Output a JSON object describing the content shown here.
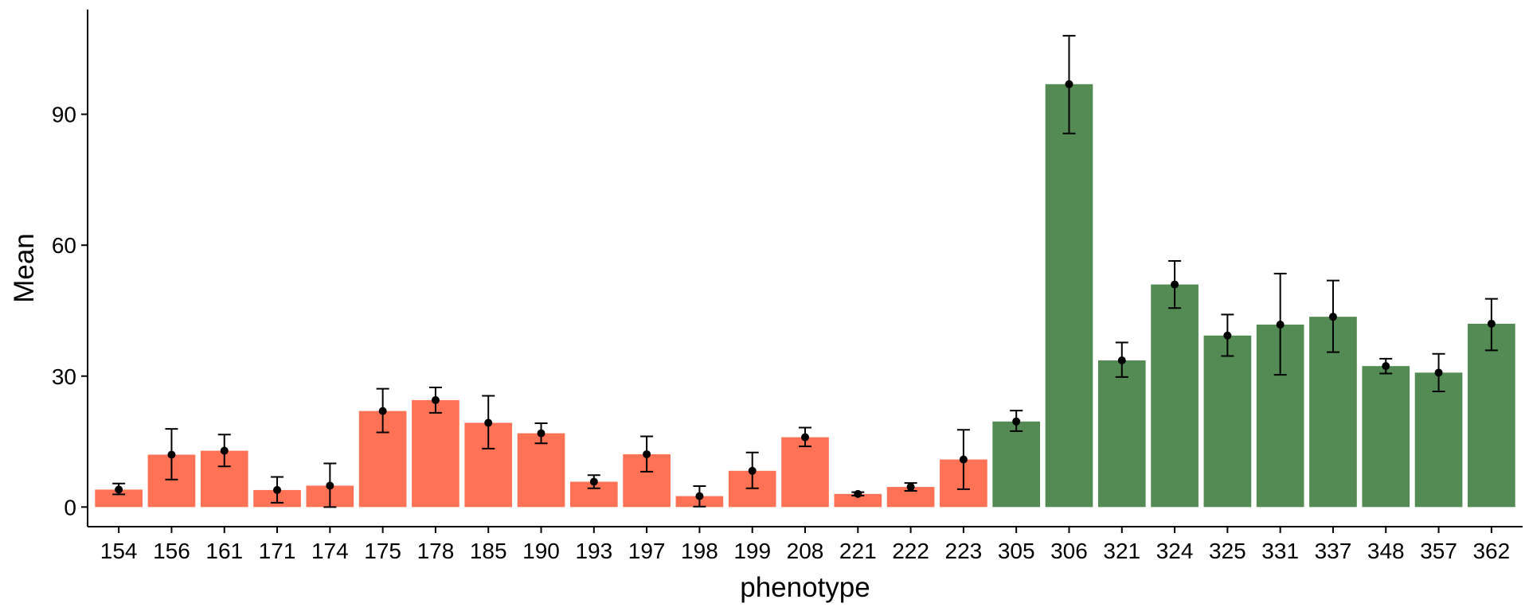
{
  "chart_data": {
    "type": "bar",
    "title": "",
    "xlabel": "phenotype",
    "ylabel": "Mean",
    "ylim": [
      -4.5,
      114
    ],
    "yticks": [
      0,
      30,
      60,
      90
    ],
    "grid": false,
    "legend": "none",
    "colors": {
      "group1": "#FF7256",
      "group2": "#548B54",
      "errorbar": "#000000",
      "point": "#000000",
      "axis": "#000000"
    },
    "categories": [
      "154",
      "156",
      "161",
      "171",
      "174",
      "175",
      "178",
      "185",
      "190",
      "193",
      "197",
      "198",
      "199",
      "208",
      "221",
      "222",
      "223",
      "305",
      "306",
      "321",
      "324",
      "325",
      "331",
      "337",
      "348",
      "357",
      "362"
    ],
    "series": [
      {
        "values": [
          4.0,
          12.0,
          12.9,
          3.9,
          4.9,
          22.0,
          24.5,
          19.3,
          16.9,
          5.8,
          12.1,
          2.5,
          8.3,
          16.0,
          3.0,
          4.6,
          10.9,
          19.6,
          96.9,
          33.6,
          51.0,
          39.3,
          41.8,
          43.6,
          32.3,
          30.8,
          42.0
        ],
        "err_low": [
          2.9,
          6.3,
          9.3,
          1.0,
          0.0,
          17.1,
          21.6,
          13.4,
          14.6,
          4.3,
          8.1,
          0.1,
          4.3,
          13.9,
          2.6,
          3.7,
          4.1,
          17.4,
          85.6,
          29.8,
          45.6,
          34.6,
          30.3,
          35.5,
          30.6,
          26.5,
          35.9
        ],
        "err_high": [
          5.4,
          17.9,
          16.6,
          6.9,
          10.0,
          27.1,
          27.4,
          25.5,
          19.2,
          7.3,
          16.2,
          4.8,
          12.5,
          18.2,
          3.4,
          5.5,
          17.7,
          22.1,
          108.0,
          37.7,
          56.4,
          44.1,
          53.5,
          51.9,
          34.0,
          35.1,
          47.7
        ],
        "groups": [
          1,
          1,
          1,
          1,
          1,
          1,
          1,
          1,
          1,
          1,
          1,
          1,
          1,
          1,
          1,
          1,
          1,
          2,
          2,
          2,
          2,
          2,
          2,
          2,
          2,
          2,
          2
        ]
      }
    ]
  }
}
